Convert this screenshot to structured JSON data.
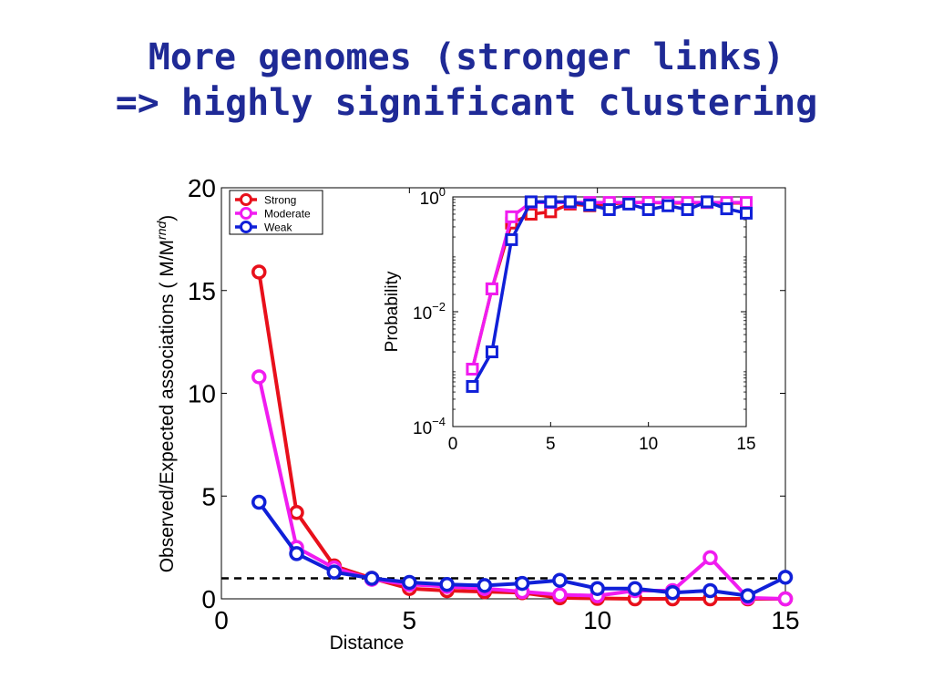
{
  "slide": {
    "title_line1": "More genomes (stronger links)",
    "title_line2": "=> highly significant clustering"
  },
  "colors": {
    "strong": "#e8101b",
    "moderate": "#f01cf0",
    "weak": "#1020d8",
    "title": "#1f2a96"
  },
  "chart_data": [
    {
      "type": "line",
      "title": "",
      "xlabel": "Distance",
      "ylabel": "Observed/Expected associations ( M/M",
      "ylabel_superscript": "rnd",
      "ylabel_close": ")",
      "xlim": [
        0,
        15
      ],
      "ylim": [
        0,
        20
      ],
      "xticks": [
        0,
        5,
        10,
        15
      ],
      "yticks": [
        0,
        5,
        10,
        15,
        20
      ],
      "reference_line": {
        "y": 1,
        "style": "dashed"
      },
      "legend": {
        "position": "top-left",
        "entries": [
          "Strong",
          "Moderate",
          "Weak"
        ]
      },
      "marker": "circle",
      "series": [
        {
          "name": "Strong",
          "x": [
            1,
            2,
            3,
            4,
            5,
            6,
            7,
            8,
            9,
            10,
            11,
            12,
            13,
            14,
            15
          ],
          "values": [
            15.9,
            4.2,
            1.6,
            1.0,
            0.5,
            0.4,
            0.35,
            0.3,
            0.05,
            0.02,
            0.0,
            0.0,
            0.0,
            0.0,
            0.0
          ]
        },
        {
          "name": "Moderate",
          "x": [
            1,
            2,
            3,
            4,
            5,
            6,
            7,
            8,
            9,
            10,
            11,
            12,
            13,
            14,
            15
          ],
          "values": [
            10.8,
            2.5,
            1.5,
            0.95,
            0.7,
            0.6,
            0.5,
            0.35,
            0.2,
            0.15,
            0.4,
            0.4,
            2.0,
            0.05,
            0.0
          ]
        },
        {
          "name": "Weak",
          "x": [
            1,
            2,
            3,
            4,
            5,
            6,
            7,
            8,
            9,
            10,
            11,
            12,
            13,
            14,
            15
          ],
          "values": [
            4.7,
            2.2,
            1.3,
            1.0,
            0.8,
            0.7,
            0.65,
            0.75,
            0.9,
            0.5,
            0.5,
            0.3,
            0.4,
            0.15,
            1.05
          ]
        }
      ]
    },
    {
      "type": "line",
      "title": "",
      "xlabel": "",
      "ylabel": "Probability",
      "xlim": [
        0,
        15
      ],
      "ylim": [
        0.0001,
        1
      ],
      "yscale": "log",
      "xticks": [
        0,
        5,
        10,
        15
      ],
      "yticks": [
        0.0001,
        0.01,
        1
      ],
      "ytick_labels": [
        {
          "base": "10",
          "exp": "−4"
        },
        {
          "base": "10",
          "exp": "−2"
        },
        {
          "base": "10",
          "exp": "0"
        }
      ],
      "marker": "square",
      "series": [
        {
          "name": "Strong",
          "x": [
            1,
            2,
            3,
            4,
            5,
            6,
            7,
            8,
            9,
            10,
            11,
            12,
            13,
            14,
            15
          ],
          "values": [
            0.001,
            0.025,
            0.35,
            0.5,
            0.55,
            0.75,
            0.7,
            0.75,
            0.8,
            0.8,
            0.78,
            0.78,
            0.8,
            0.78,
            0.78
          ]
        },
        {
          "name": "Moderate",
          "x": [
            1,
            2,
            3,
            4,
            5,
            6,
            7,
            8,
            9,
            10,
            11,
            12,
            13,
            14,
            15
          ],
          "values": [
            0.001,
            0.025,
            0.45,
            0.8,
            0.8,
            0.8,
            0.8,
            0.8,
            0.8,
            0.8,
            0.8,
            0.8,
            0.8,
            0.8,
            0.8
          ]
        },
        {
          "name": "Weak",
          "x": [
            1,
            2,
            3,
            4,
            5,
            6,
            7,
            8,
            9,
            10,
            11,
            12,
            13,
            14,
            15
          ],
          "values": [
            0.0005,
            0.002,
            0.18,
            0.82,
            0.82,
            0.82,
            0.72,
            0.6,
            0.75,
            0.6,
            0.7,
            0.6,
            0.82,
            0.62,
            0.52
          ]
        }
      ]
    }
  ]
}
